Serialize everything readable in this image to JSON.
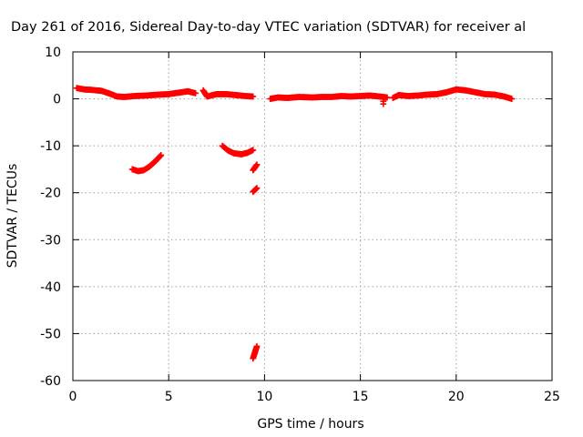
{
  "chart_data": {
    "type": "scatter",
    "title": "Day 261 of 2016, Sidereal Day-to-day VTEC variation (SDTVAR) for receiver al",
    "xlabel": "GPS time / hours",
    "ylabel": "SDTVAR / TECUs",
    "xlim": [
      0,
      25
    ],
    "ylim": [
      -60,
      10
    ],
    "xticks": [
      0,
      5,
      10,
      15,
      20,
      25
    ],
    "yticks": [
      10,
      0,
      -10,
      -20,
      -30,
      -40,
      -50,
      -60
    ],
    "grid": true,
    "legend": "none",
    "series": [
      {
        "color": "#ff0000",
        "marker": "plus",
        "segments": [
          [
            [
              0.2,
              2.3
            ],
            [
              0.6,
              2.0
            ],
            [
              1.0,
              1.9
            ],
            [
              1.5,
              1.7
            ],
            [
              2.0,
              1.0
            ],
            [
              2.3,
              0.5
            ],
            [
              2.7,
              0.4
            ],
            [
              3.2,
              0.6
            ],
            [
              3.8,
              0.7
            ],
            [
              4.5,
              0.9
            ],
            [
              5.0,
              1.0
            ],
            [
              5.5,
              1.3
            ],
            [
              6.0,
              1.6
            ],
            [
              6.4,
              1.2
            ]
          ],
          [
            [
              6.8,
              1.8
            ],
            [
              7.0,
              0.5
            ],
            [
              7.5,
              1.0
            ],
            [
              8.0,
              1.0
            ],
            [
              8.5,
              0.8
            ],
            [
              9.0,
              0.6
            ],
            [
              9.4,
              0.5
            ]
          ],
          [
            [
              10.3,
              0.0
            ],
            [
              10.7,
              0.3
            ],
            [
              11.2,
              0.2
            ],
            [
              11.8,
              0.4
            ],
            [
              12.5,
              0.3
            ],
            [
              13.0,
              0.4
            ],
            [
              13.5,
              0.4
            ],
            [
              14.0,
              0.6
            ],
            [
              14.5,
              0.5
            ],
            [
              15.0,
              0.6
            ],
            [
              15.5,
              0.7
            ],
            [
              16.0,
              0.5
            ],
            [
              16.4,
              0.3
            ]
          ],
          [
            [
              16.7,
              0.2
            ],
            [
              17.0,
              0.8
            ],
            [
              17.5,
              0.6
            ],
            [
              18.0,
              0.7
            ],
            [
              18.5,
              0.9
            ],
            [
              19.0,
              1.0
            ],
            [
              19.5,
              1.4
            ],
            [
              20.0,
              2.0
            ],
            [
              20.5,
              1.8
            ],
            [
              21.0,
              1.4
            ],
            [
              21.5,
              1.0
            ],
            [
              22.0,
              0.9
            ],
            [
              22.5,
              0.5
            ],
            [
              22.9,
              0.0
            ]
          ],
          [
            [
              16.2,
              -0.5
            ]
          ],
          [
            [
              3.1,
              -15.0
            ],
            [
              3.4,
              -15.4
            ],
            [
              3.7,
              -15.2
            ],
            [
              4.0,
              -14.4
            ],
            [
              4.3,
              -13.3
            ],
            [
              4.6,
              -12.0
            ]
          ],
          [
            [
              7.8,
              -10.0
            ],
            [
              8.1,
              -11.0
            ],
            [
              8.4,
              -11.6
            ],
            [
              8.8,
              -11.8
            ],
            [
              9.1,
              -11.5
            ],
            [
              9.4,
              -10.9
            ]
          ],
          [
            [
              9.4,
              -15.2
            ],
            [
              9.6,
              -14.0
            ]
          ],
          [
            [
              9.4,
              -19.8
            ],
            [
              9.6,
              -19.0
            ]
          ],
          [
            [
              9.4,
              -55.3
            ],
            [
              9.5,
              -54.0
            ],
            [
              9.6,
              -52.7
            ]
          ]
        ]
      }
    ]
  }
}
